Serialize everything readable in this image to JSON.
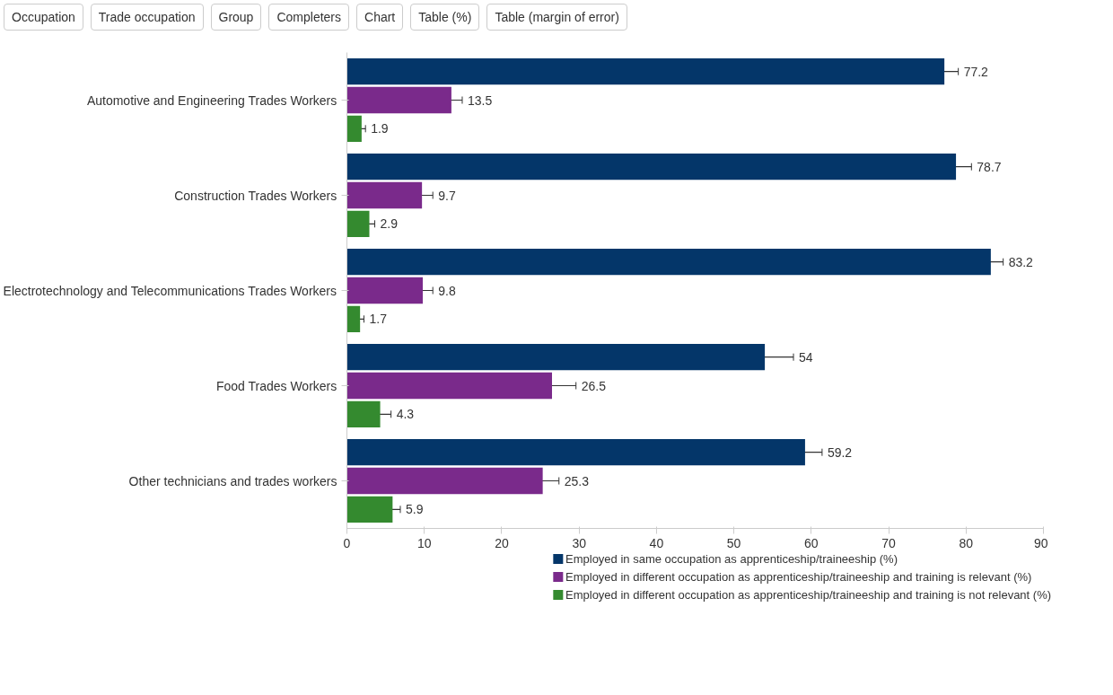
{
  "chart_data": {
    "type": "bar",
    "orientation": "horizontal",
    "annotations": [
      "Occupation",
      "Trade occupation",
      "Group",
      "Completers",
      "Chart",
      "Table (%)",
      "Table (margin of error)"
    ],
    "categories": [
      "Automotive and Engineering Trades Workers",
      "Construction Trades Workers",
      "Electrotechnology and Telecommunications Trades Workers",
      "Food Trades Workers",
      "Other technicians and trades workers"
    ],
    "series": [
      {
        "name": "Employed in same occupation as apprenticeship/traineeship (%)",
        "color": "#043669",
        "values": [
          77.2,
          78.7,
          83.2,
          54,
          59.2
        ],
        "errors": [
          1.8,
          2.0,
          1.6,
          3.7,
          2.2
        ]
      },
      {
        "name": "Employed in different occupation as apprenticeship/traineeship and training is relevant (%)",
        "color": "#7a2a8b",
        "values": [
          13.5,
          9.7,
          9.8,
          26.5,
          25.3
        ],
        "errors": [
          1.4,
          1.4,
          1.3,
          3.1,
          2.1
        ]
      },
      {
        "name": "Employed in different occupation as apprenticeship/traineeship and training is not relevant (%)",
        "color": "#348a2f",
        "values": [
          1.9,
          2.9,
          1.7,
          4.3,
          5.9
        ],
        "errors": [
          0.5,
          0.7,
          0.5,
          1.4,
          1.0
        ]
      }
    ],
    "xlim": [
      0,
      90
    ],
    "xticks": [
      0,
      10,
      20,
      30,
      40,
      50,
      60,
      70,
      80,
      90
    ],
    "data_labels": true,
    "grid": false,
    "legend": "bottom"
  }
}
